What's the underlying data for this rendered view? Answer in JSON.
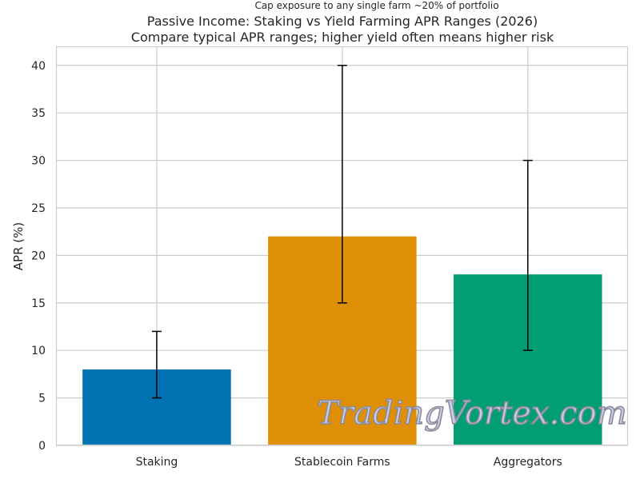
{
  "chart_data": {
    "type": "bar",
    "title": "Passive Income: Staking vs Yield Farming APR Ranges (2026)",
    "subtitle": "Compare typical APR ranges; higher yield often means higher risk",
    "annotation": "Cap exposure to any single farm ~20% of portfolio",
    "xlabel": "",
    "ylabel": "APR (%)",
    "ylim": [
      0,
      42
    ],
    "yticks": [
      0,
      5,
      10,
      15,
      20,
      25,
      30,
      35,
      40
    ],
    "grid": true,
    "categories": [
      "Staking",
      "Stablecoin Farms",
      "Aggregators"
    ],
    "values": [
      8,
      22,
      18
    ],
    "error_low": [
      5,
      15,
      10
    ],
    "error_high": [
      12,
      40,
      30
    ],
    "colors": [
      "#0173b2",
      "#de8f05",
      "#029e73"
    ]
  },
  "watermark": "TradingVortex.com"
}
